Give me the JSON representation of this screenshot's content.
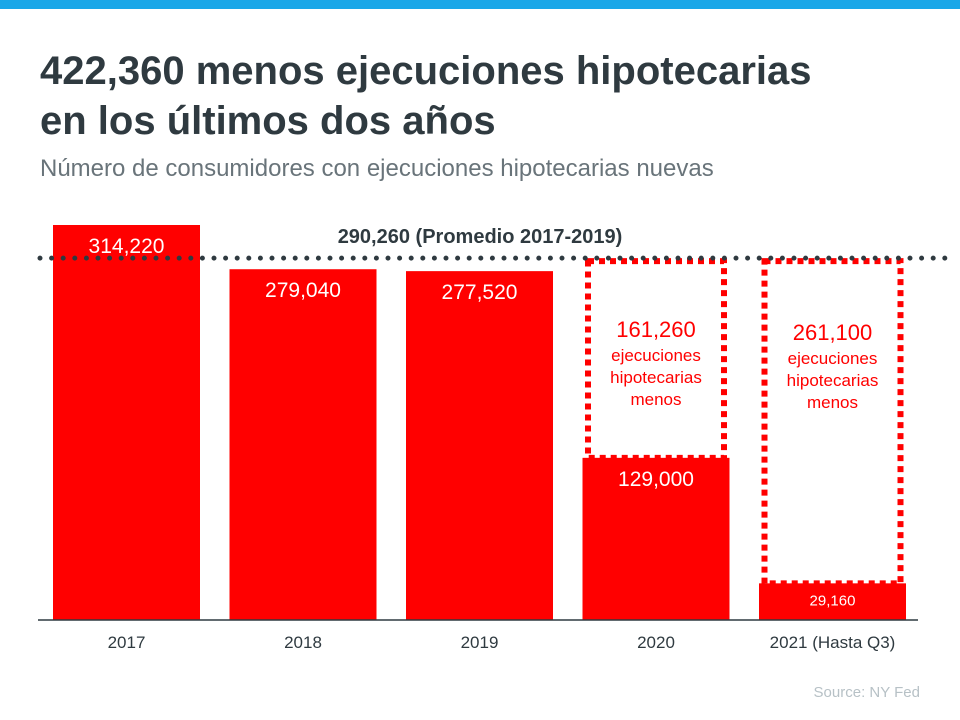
{
  "header": {
    "title_line1": "422,360 menos ejecuciones hipotecarias",
    "title_line2": "en los últimos dos años",
    "subtitle": "Número de consumidores con ejecuciones hipotecarias nuevas"
  },
  "colors": {
    "bar": "#ff0000",
    "accent": "#1aa7e8",
    "text": "#2f3a40",
    "average_line": "#2f3a40"
  },
  "chart_data": {
    "type": "bar",
    "categories": [
      "2017",
      "2018",
      "2019",
      "2020",
      "2021 (Hasta Q3)"
    ],
    "values": [
      314220,
      279040,
      277520,
      129000,
      29160
    ],
    "value_labels": [
      "314,220",
      "279,040",
      "277,520",
      "129,000",
      "29,160"
    ],
    "average": {
      "value": 290260,
      "label": "290,260 (Promedio 2017-2019)",
      "style": "dotted"
    },
    "gap_annotations": [
      {
        "category": "2020",
        "value": 161260,
        "label": "161,260",
        "text": [
          "ejecuciones",
          "hipotecarias",
          "menos"
        ]
      },
      {
        "category": "2021 (Hasta Q3)",
        "value": 261100,
        "label": "261,100",
        "text": [
          "ejecuciones",
          "hipotecarias",
          "menos"
        ]
      }
    ],
    "ylim": [
      0,
      314220
    ],
    "grid": false,
    "source": "Source: NY Fed"
  }
}
